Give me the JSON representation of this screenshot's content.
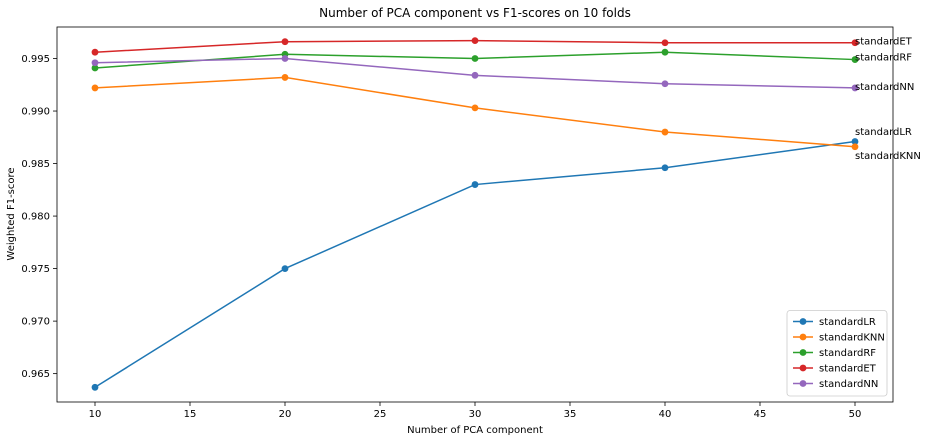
{
  "chart_data": {
    "type": "line",
    "title": "Number of PCA component vs F1-scores on 10 folds",
    "xlabel": "Number of PCA component",
    "ylabel": "Weighted F1-score",
    "x": [
      10,
      20,
      30,
      40,
      50
    ],
    "xlim": [
      8,
      52
    ],
    "ylim": [
      0.9623,
      0.998
    ],
    "xticks": [
      10,
      15,
      20,
      25,
      30,
      35,
      40,
      45,
      50
    ],
    "yticks": [
      0.965,
      0.97,
      0.975,
      0.98,
      0.985,
      0.99,
      0.995
    ],
    "ytick_labels": [
      "0.965",
      "0.970",
      "0.975",
      "0.980",
      "0.985",
      "0.990",
      "0.995"
    ],
    "grid": false,
    "legend_position": "lower-right",
    "series": [
      {
        "name": "standardLR",
        "color": "#1f77b4",
        "values": [
          0.9637,
          0.975,
          0.983,
          0.9846,
          0.9871
        ]
      },
      {
        "name": "standardKNN",
        "color": "#ff7f0e",
        "values": [
          0.9922,
          0.9932,
          0.9903,
          0.988,
          0.9866
        ]
      },
      {
        "name": "standardRF",
        "color": "#2ca02c",
        "values": [
          0.9941,
          0.9954,
          0.995,
          0.9956,
          0.9949
        ]
      },
      {
        "name": "standardET",
        "color": "#d62728",
        "values": [
          0.9956,
          0.9966,
          0.9967,
          0.9965,
          0.9965
        ]
      },
      {
        "name": "standardNN",
        "color": "#9467bd",
        "values": [
          0.9946,
          0.995,
          0.9934,
          0.9926,
          0.9922
        ]
      }
    ],
    "annotations": [
      {
        "text": "standardET",
        "x": 50,
        "y": 0.9967
      },
      {
        "text": "standardRF",
        "x": 50,
        "y": 0.9952
      },
      {
        "text": "standardNN",
        "x": 50,
        "y": 0.9924
      },
      {
        "text": "standardLR",
        "x": 50,
        "y": 0.9881
      },
      {
        "text": "standardKNN",
        "x": 50,
        "y": 0.9858
      }
    ]
  }
}
